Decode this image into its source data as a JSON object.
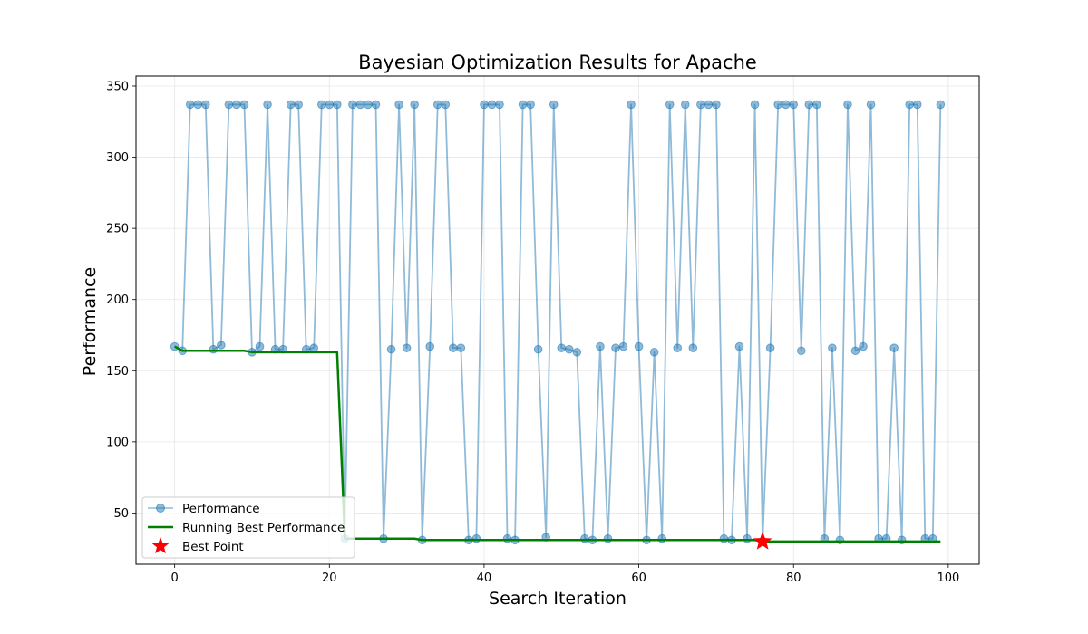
{
  "chart_data": {
    "type": "line",
    "title": "Bayesian Optimization Results for Apache",
    "xlabel": "Search Iteration",
    "ylabel": "Performance",
    "xlim": [
      -5,
      104
    ],
    "ylim": [
      14,
      357
    ],
    "xticks": [
      0,
      20,
      40,
      60,
      80,
      100
    ],
    "yticks": [
      50,
      100,
      150,
      200,
      250,
      300,
      350
    ],
    "grid": true,
    "legend_position": "lower-left",
    "colors": {
      "performance": "#1f77b4",
      "running_best": "#008000",
      "best_point": "#ff0000"
    },
    "series": [
      {
        "name": "Performance",
        "style": "line-with-markers",
        "x": [
          0,
          1,
          2,
          3,
          4,
          5,
          6,
          7,
          8,
          9,
          10,
          11,
          12,
          13,
          14,
          15,
          16,
          17,
          18,
          19,
          20,
          21,
          22,
          23,
          24,
          25,
          26,
          27,
          28,
          29,
          30,
          31,
          32,
          33,
          34,
          35,
          36,
          37,
          38,
          39,
          40,
          41,
          42,
          43,
          44,
          45,
          46,
          47,
          48,
          49,
          50,
          51,
          52,
          53,
          54,
          55,
          56,
          57,
          58,
          59,
          60,
          61,
          62,
          63,
          64,
          65,
          66,
          67,
          68,
          69,
          70,
          71,
          72,
          73,
          74,
          75,
          76,
          77,
          78,
          79,
          80,
          81,
          82,
          83,
          84,
          85,
          86,
          87,
          88,
          89,
          90,
          91,
          92,
          93,
          94,
          95,
          96,
          97,
          98,
          99
        ],
        "y": [
          167,
          164,
          337,
          337,
          337,
          165,
          168,
          337,
          337,
          337,
          163,
          167,
          337,
          165,
          165,
          337,
          337,
          165,
          166,
          337,
          337,
          337,
          32,
          337,
          337,
          337,
          337,
          32,
          165,
          337,
          166,
          337,
          31,
          167,
          337,
          337,
          166,
          166,
          31,
          32,
          337,
          337,
          337,
          32,
          31,
          337,
          337,
          165,
          33,
          337,
          166,
          165,
          163,
          32,
          31,
          167,
          32,
          166,
          167,
          337,
          167,
          31,
          163,
          32,
          337,
          166,
          337,
          166,
          337,
          337,
          337,
          32,
          31,
          167,
          32,
          337,
          30,
          166,
          337,
          337,
          337,
          164,
          337,
          337,
          32,
          166,
          31,
          337,
          164,
          167,
          337,
          32,
          32,
          166,
          31,
          337,
          337,
          32,
          32,
          337
        ]
      },
      {
        "name": "Running Best Performance",
        "style": "line",
        "x": [
          0,
          1,
          2,
          3,
          4,
          5,
          6,
          7,
          8,
          9,
          10,
          11,
          12,
          13,
          14,
          15,
          16,
          17,
          18,
          19,
          20,
          21,
          22,
          23,
          24,
          25,
          26,
          27,
          28,
          29,
          30,
          31,
          32,
          33,
          34,
          35,
          36,
          37,
          38,
          39,
          40,
          41,
          42,
          43,
          44,
          45,
          46,
          47,
          48,
          49,
          50,
          51,
          52,
          53,
          54,
          55,
          56,
          57,
          58,
          59,
          60,
          61,
          62,
          63,
          64,
          65,
          66,
          67,
          68,
          69,
          70,
          71,
          72,
          73,
          74,
          75,
          76,
          77,
          78,
          79,
          80,
          81,
          82,
          83,
          84,
          85,
          86,
          87,
          88,
          89,
          90,
          91,
          92,
          93,
          94,
          95,
          96,
          97,
          98,
          99
        ],
        "y": [
          167,
          164,
          164,
          164,
          164,
          164,
          164,
          164,
          164,
          164,
          163,
          163,
          163,
          163,
          163,
          163,
          163,
          163,
          163,
          163,
          163,
          163,
          32,
          32,
          32,
          32,
          32,
          32,
          32,
          32,
          32,
          32,
          31,
          31,
          31,
          31,
          31,
          31,
          31,
          31,
          31,
          31,
          31,
          31,
          31,
          31,
          31,
          31,
          31,
          31,
          31,
          31,
          31,
          31,
          31,
          31,
          31,
          31,
          31,
          31,
          31,
          31,
          31,
          31,
          31,
          31,
          31,
          31,
          31,
          31,
          31,
          31,
          31,
          31,
          31,
          31,
          30,
          30,
          30,
          30,
          30,
          30,
          30,
          30,
          30,
          30,
          30,
          30,
          30,
          30,
          30,
          30,
          30,
          30,
          30,
          30,
          30,
          30,
          30,
          30
        ]
      },
      {
        "name": "Best Point",
        "style": "star-marker",
        "x": [
          76
        ],
        "y": [
          30
        ]
      }
    ]
  }
}
